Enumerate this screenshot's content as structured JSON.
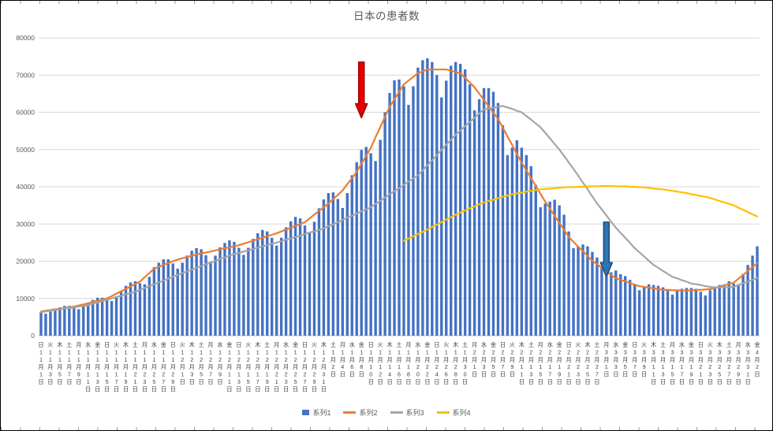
{
  "title": "日本の患者数",
  "colors": {
    "grid": "#D9D9D9",
    "axis": "#BFBFBF",
    "text": "#595959",
    "xlabel_text": "#404040",
    "background": "#FFFFFF",
    "frame": "#000000"
  },
  "chart_data": {
    "type": "bar",
    "title": "日本の患者数",
    "xlabel": "",
    "ylabel": "",
    "ylim": [
      0,
      80000
    ],
    "ytick_step": 10000,
    "yticks": [
      "0",
      "10000",
      "20000",
      "30000",
      "40000",
      "50000",
      "60000",
      "70000",
      "80000"
    ],
    "grid": true,
    "legend_position": "bottom",
    "num_days": 153,
    "tick_every_days": 2,
    "tick_labels": [
      "日|11月1日",
      "火|11月3日",
      "木|11月5日",
      "土|11月7日",
      "月|11月9日",
      "水|11月11日",
      "金|11月13日",
      "日|11月15日",
      "火|11月17日",
      "木|11月19日",
      "土|11月21日",
      "月|11月23日",
      "水|11月25日",
      "金|11月27日",
      "日|11月29日",
      "火|12月1日",
      "木|12月3日",
      "土|12月5日",
      "月|12月7日",
      "水|12月9日",
      "金|12月11日",
      "日|12月13日",
      "火|12月15日",
      "木|12月17日",
      "土|12月19日",
      "月|12月21日",
      "水|12月23日",
      "金|12月25日",
      "日|12月27日",
      "火|12月29日",
      "木|12月31日",
      "土|1月2日",
      "月|1月4日",
      "水|1月6日",
      "金|1月8日",
      "日|1月10日",
      "火|1月12日",
      "木|1月14日",
      "土|1月16日",
      "月|1月18日",
      "水|1月20日",
      "金|1月22日",
      "日|1月24日",
      "火|1月26日",
      "木|1月28日",
      "土|1月30日",
      "月|2月1日",
      "水|2月3日",
      "金|2月5日",
      "日|2月7日",
      "火|2月9日",
      "木|2月11日",
      "土|2月13日",
      "月|2月15日",
      "水|2月17日",
      "金|2月19日",
      "日|2月21日",
      "火|2月23日",
      "木|2月25日",
      "土|2月27日",
      "月|3月1日",
      "水|3月3日",
      "金|3月5日",
      "日|3月7日",
      "火|3月9日",
      "木|3月11日",
      "土|3月13日",
      "月|3月15日",
      "水|3月17日",
      "金|3月19日",
      "日|3月21日",
      "火|3月23日",
      "木|3月25日",
      "土|3月27日",
      "月|3月29日",
      "水|3月31日",
      "金|4月2日"
    ],
    "series": [
      {
        "name": "系列1",
        "type": "bar",
        "color": "#4472C4",
        "start_day": 0,
        "values": [
          6300,
          5900,
          6500,
          7200,
          7600,
          8000,
          8000,
          7600,
          7100,
          7900,
          8900,
          9600,
          10200,
          10200,
          9700,
          9300,
          10600,
          12100,
          13400,
          14300,
          14600,
          14100,
          13800,
          15800,
          18400,
          19600,
          20500,
          20500,
          19400,
          18000,
          19600,
          21500,
          22800,
          23500,
          23200,
          21600,
          19900,
          21500,
          23700,
          24900,
          25600,
          25200,
          23600,
          21700,
          23600,
          26000,
          27500,
          28400,
          28000,
          26300,
          24200,
          26300,
          29100,
          30700,
          31900,
          31500,
          29600,
          27700,
          30600,
          34200,
          36600,
          38300,
          38500,
          36700,
          34300,
          38300,
          43100,
          46600,
          49900,
          50700,
          49000,
          46900,
          52600,
          60000,
          65200,
          68600,
          68800,
          67000,
          62000,
          67000,
          72000,
          74000,
          74500,
          73500,
          70000,
          64000,
          68500,
          72500,
          73500,
          73000,
          71500,
          67500,
          60500,
          63500,
          66500,
          66500,
          65500,
          62500,
          56500,
          48500,
          50500,
          52500,
          50500,
          48500,
          45500,
          40500,
          34500,
          35500,
          36000,
          36500,
          35000,
          32500,
          28000,
          23500,
          24000,
          24500,
          24000,
          22500,
          21000,
          18500,
          16000,
          17000,
          17500,
          16500,
          16000,
          15000,
          13800,
          12200,
          13200,
          13800,
          13600,
          13400,
          13000,
          12200,
          11000,
          12000,
          12600,
          12800,
          12800,
          12600,
          11800,
          10800,
          12200,
          13200,
          13600,
          13800,
          14600,
          14000,
          13600,
          16600,
          19000,
          21500,
          24000
        ]
      },
      {
        "name": "系列2",
        "type": "line",
        "color": "#ED7D31",
        "start_day": 0,
        "values": [
          6500,
          6700,
          6900,
          7100,
          7200,
          7400,
          7600,
          7800,
          8100,
          8400,
          8700,
          9100,
          9400,
          9700,
          10000,
          10600,
          11300,
          11900,
          12600,
          13200,
          13900,
          14500,
          15700,
          16800,
          18000,
          18500,
          19000,
          19500,
          20000,
          20400,
          20800,
          21100,
          21500,
          21800,
          22100,
          22300,
          22600,
          22900,
          23200,
          23500,
          23700,
          24000,
          24300,
          24700,
          25100,
          25500,
          25900,
          26300,
          26700,
          27100,
          27500,
          28000,
          28500,
          29000,
          29500,
          30000,
          30500,
          31500,
          32500,
          33500,
          34500,
          35500,
          36700,
          37800,
          39000,
          40700,
          42300,
          44000,
          46200,
          48300,
          50500,
          53300,
          56000,
          58800,
          61500,
          63500,
          65500,
          67500,
          68500,
          69500,
          70500,
          71000,
          71500,
          71500,
          71500,
          71500,
          71500,
          71200,
          70800,
          70500,
          69200,
          68000,
          66700,
          65000,
          63300,
          61600,
          59900,
          58200,
          55900,
          53500,
          51200,
          48800,
          46500,
          44400,
          42300,
          40200,
          38100,
          36000,
          34100,
          32200,
          30300,
          28400,
          26500,
          25200,
          23900,
          22700,
          21400,
          20100,
          19200,
          18200,
          17300,
          16300,
          15400,
          15000,
          14600,
          14100,
          13700,
          13300,
          13100,
          12900,
          12700,
          12500,
          12300,
          12300,
          12200,
          12200,
          12100,
          12100,
          12200,
          12300,
          12300,
          12400,
          12500,
          12800,
          13200,
          13500,
          13900,
          14200,
          15300,
          16300,
          17400,
          18400,
          19500
        ]
      },
      {
        "name": "系列3",
        "type": "line",
        "color": "#A5A5A5",
        "start_day": 0,
        "values": [
          6300,
          6500,
          6700,
          6900,
          7100,
          7300,
          7400,
          7600,
          7800,
          8000,
          8200,
          8600,
          8900,
          9300,
          9600,
          10000,
          10400,
          10700,
          11100,
          11400,
          11800,
          12300,
          12800,
          13300,
          13800,
          14300,
          14800,
          15300,
          15800,
          16300,
          16800,
          17300,
          17700,
          18200,
          18700,
          19200,
          19600,
          20100,
          20600,
          21000,
          21500,
          21900,
          22200,
          22600,
          22900,
          23300,
          23600,
          24000,
          24300,
          24700,
          25000,
          25400,
          25800,
          26100,
          26500,
          26900,
          27300,
          27700,
          28000,
          28400,
          28800,
          29400,
          29900,
          30500,
          31100,
          31700,
          32200,
          32800,
          33400,
          33900,
          34500,
          35400,
          36200,
          37100,
          38000,
          38800,
          39600,
          40500,
          41400,
          42200,
          43000,
          44400,
          45800,
          47100,
          48500,
          49900,
          51300,
          52600,
          54000,
          55100,
          56300,
          57400,
          58500,
          59700,
          60800,
          61000,
          61200,
          61500,
          61700,
          61300,
          60900,
          60400,
          60000,
          59000,
          58000,
          57000,
          56000,
          54500,
          53000,
          51500,
          50000,
          48300,
          46500,
          44800,
          43000,
          41100,
          39300,
          37400,
          35500,
          33900,
          32300,
          30600,
          29000,
          27600,
          26300,
          24900,
          23500,
          22400,
          21300,
          20100,
          19000,
          18200,
          17400,
          16600,
          15800,
          15400,
          14900,
          14500,
          14000,
          13800,
          13600,
          13300,
          13100,
          12900,
          13000,
          13000,
          13000,
          13100,
          13600,
          14100,
          14500,
          15000,
          15500
        ]
      },
      {
        "name": "系列4",
        "type": "line",
        "color": "#FFC000",
        "start_day": 77,
        "values": [
          25500,
          26100,
          26700,
          27300,
          27900,
          28500,
          29200,
          29800,
          30500,
          31200,
          31800,
          32500,
          33100,
          33600,
          34200,
          34700,
          35300,
          35800,
          36200,
          36500,
          36900,
          37300,
          37600,
          38000,
          38200,
          38400,
          38700,
          38900,
          39100,
          39300,
          39400,
          39500,
          39600,
          39700,
          39800,
          39900,
          39900,
          40000,
          40000,
          40100,
          40100,
          40100,
          40200,
          40200,
          40200,
          40100,
          40100,
          40100,
          40000,
          40000,
          39900,
          39800,
          39700,
          39500,
          39400,
          39300,
          39100,
          38900,
          38700,
          38500,
          38300,
          38000,
          37800,
          37500,
          37300,
          37000,
          36600,
          36200,
          35800,
          35400,
          35000,
          34400,
          33800,
          33200,
          32600,
          32000
        ]
      }
    ],
    "annotations": [
      {
        "name": "red-down-arrow",
        "shape": "down-arrow",
        "fill": "#E60000",
        "outline": "#A50000",
        "day_index": 68,
        "tip_value": 58500,
        "tail_value": 73500
      },
      {
        "name": "blue-down-arrow",
        "shape": "down-arrow",
        "fill": "#2E75B6",
        "outline": "#1F4E79",
        "day_index": 120,
        "tip_value": 15800,
        "tail_value": 30500
      }
    ]
  }
}
